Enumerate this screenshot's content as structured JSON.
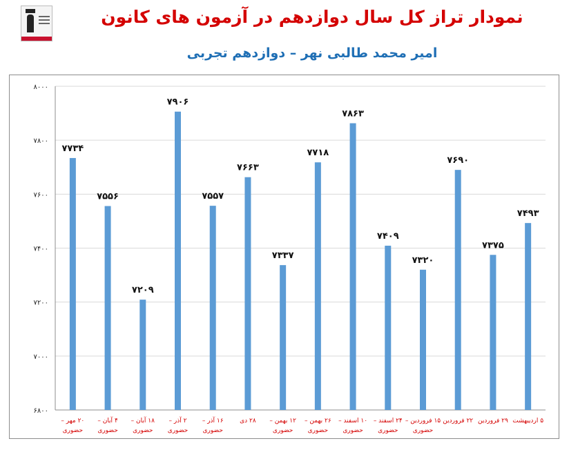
{
  "title": "نمودار تراز کل سال دوازدهم در آزمون های کانون",
  "subtitle": "امیر محمد طالبی نهر – دوازدهم تجربی",
  "colors": {
    "bar": "#5b9bd5",
    "title": "#d40000",
    "subtitle": "#1f6fb5",
    "xlabel": "#d40000",
    "grid": "#d9d9d9"
  },
  "chart_data": {
    "type": "bar",
    "title": "نمودار تراز کل سال دوازدهم در آزمون های کانون",
    "subtitle": "امیر محمد طالبی نهر – دوازدهم تجربی",
    "xlabel": "",
    "ylabel": "",
    "ylim": [
      6800,
      8000
    ],
    "yticks": [
      6800,
      7000,
      7200,
      7400,
      7600,
      7800,
      8000
    ],
    "ytick_labels": [
      "۶۸۰۰",
      "۷۰۰۰",
      "۷۲۰۰",
      "۷۴۰۰",
      "۷۶۰۰",
      "۷۸۰۰",
      "۸۰۰۰"
    ],
    "grid": true,
    "legend": false,
    "categories": [
      [
        "۲۰ مهر –",
        "حضوری"
      ],
      [
        "۴ آبان –",
        "حضوری"
      ],
      [
        "۱۸ آبان –",
        "حضوری"
      ],
      [
        "۲ آذر –",
        "حضوری"
      ],
      [
        "۱۶ آذر –",
        "حضوری"
      ],
      [
        "۲۸ دی"
      ],
      [
        "۱۲ بهمن –",
        "حضوری"
      ],
      [
        "۲۶ بهمن –",
        "حضوری"
      ],
      [
        "۱۰ اسفند –",
        "حضوری"
      ],
      [
        "۲۴ اسفند –",
        "حضوری"
      ],
      [
        "۱۵ فروردین –",
        "حضوری"
      ],
      [
        "۲۲ فروردین"
      ],
      [
        "۲۹ فروردین"
      ],
      [
        "۵ اردیبهشت"
      ]
    ],
    "values": [
      7734,
      7556,
      7209,
      7906,
      7557,
      7663,
      7337,
      7718,
      7863,
      7409,
      7320,
      7690,
      7375,
      7493
    ],
    "data_labels": [
      "۷۷۳۴",
      "۷۵۵۶",
      "۷۲۰۹",
      "۷۹۰۶",
      "۷۵۵۷",
      "۷۶۶۳",
      "۷۳۳۷",
      "۷۷۱۸",
      "۷۸۶۳",
      "۷۴۰۹",
      "۷۳۲۰",
      "۷۶۹۰",
      "۷۳۷۵",
      "۷۴۹۳"
    ]
  }
}
